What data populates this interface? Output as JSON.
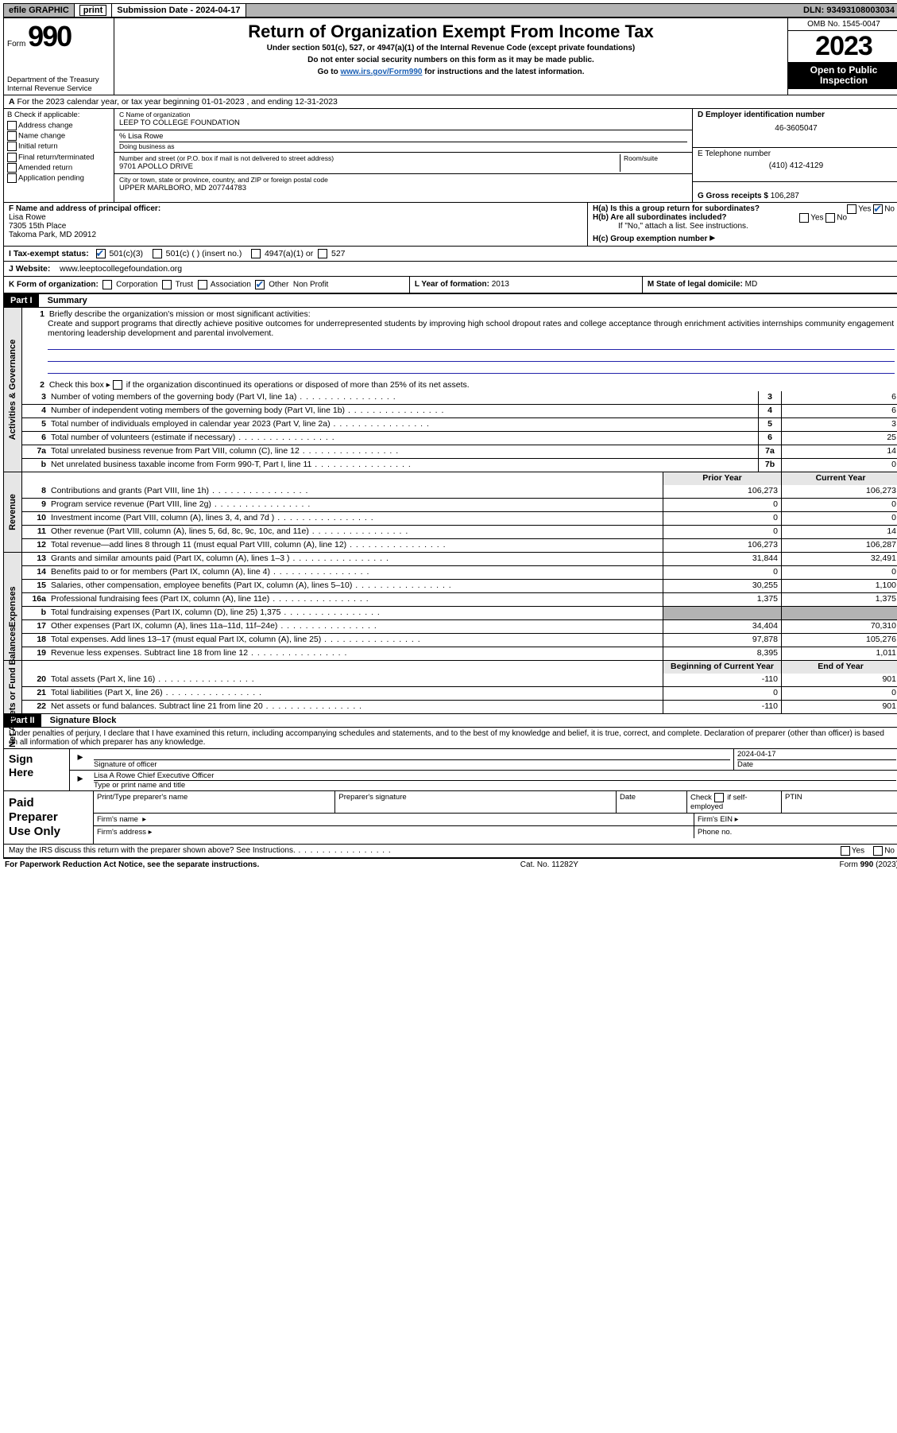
{
  "topbar": {
    "efile": "efile GRAPHIC",
    "print": "print",
    "submission_label": "Submission Date - 2024-04-17",
    "dln": "DLN: 93493108003034"
  },
  "header": {
    "form_prefix": "Form",
    "form_number": "990",
    "dept1": "Department of the Treasury",
    "dept2": "Internal Revenue Service",
    "title": "Return of Organization Exempt From Income Tax",
    "sub1": "Under section 501(c), 527, or 4947(a)(1) of the Internal Revenue Code (except private foundations)",
    "sub2": "Do not enter social security numbers on this form as it may be made public.",
    "sub3_pre": "Go to ",
    "sub3_link": "www.irs.gov/Form990",
    "sub3_post": " for instructions and the latest information.",
    "omb": "OMB No. 1545-0047",
    "year": "2023",
    "inspection1": "Open to Public",
    "inspection2": "Inspection"
  },
  "rowA": {
    "label_A": "A",
    "text": "For the 2023 calendar year, or tax year beginning 01-01-2023    , and ending 12-31-2023"
  },
  "colB": {
    "label": "B Check if applicable:",
    "items": [
      "Address change",
      "Name change",
      "Initial return",
      "Final return/terminated",
      "Amended return",
      "Application pending"
    ]
  },
  "colC": {
    "name_lbl": "C Name of organization",
    "name": "LEEP TO COLLEGE FOUNDATION",
    "care_of": "% Lisa Rowe",
    "dba_lbl": "Doing business as",
    "street_lbl": "Number and street (or P.O. box if mail is not delivered to street address)",
    "suite_lbl": "Room/suite",
    "street": "9701 APOLLO DRIVE",
    "city_lbl": "City or town, state or province, country, and ZIP or foreign postal code",
    "city": "UPPER MARLBORO, MD  207744783"
  },
  "colDEG": {
    "d_lbl": "D Employer identification number",
    "ein": "46-3605047",
    "e_lbl": "E Telephone number",
    "phone": "(410) 412-4129",
    "g_lbl": "G Gross receipts $",
    "gross": "106,287"
  },
  "rowF": {
    "lbl": "F Name and address of principal officer:",
    "name": "Lisa Rowe",
    "addr1": "7305 15th Place",
    "addr2": "Takoma Park, MD  20912"
  },
  "rowH": {
    "ha": "H(a)  Is this a group return for subordinates?",
    "hb": "H(b)  Are all subordinates included?",
    "hb_note": "If \"No,\" attach a list. See instructions.",
    "hc": "H(c)  Group exemption number ",
    "yes": "Yes",
    "no": "No"
  },
  "rowI": {
    "lbl": "I    Tax-exempt status:",
    "o1": "501(c)(3)",
    "o2": "501(c) (  ) (insert no.)",
    "o3": "4947(a)(1) or",
    "o4": "527"
  },
  "rowJ": {
    "lbl": "J    Website: ",
    "val": "www.leeptocollegefoundation.org"
  },
  "rowK": {
    "k_lbl": "K Form of organization:",
    "k_opts": [
      "Corporation",
      "Trust",
      "Association",
      "Other"
    ],
    "k_other": "Non Profit",
    "l_lbl": "L Year of formation:",
    "l_val": "2013",
    "m_lbl": "M State of legal domicile:",
    "m_val": "MD"
  },
  "part1": {
    "header": "Part I",
    "title": "Summary",
    "q1_lbl": "Briefly describe the organization's mission or most significant activities:",
    "q1_text": "Create and support programs that directly achieve positive outcomes for underrepresented students by improving high school dropout rates and college acceptance through enrichment activities internships community engagement mentoring leadership development and parental involvement.",
    "q2": "Check this box          if the organization discontinued its operations or disposed of more than 25% of its net assets.",
    "side_gov": "Activities & Governance",
    "side_rev": "Revenue",
    "side_exp": "Expenses",
    "side_net": "Net Assets or Fund Balances",
    "rows_gov": [
      {
        "n": "3",
        "t": "Number of voting members of the governing body (Part VI, line 1a)",
        "b": "3",
        "v": "6"
      },
      {
        "n": "4",
        "t": "Number of independent voting members of the governing body (Part VI, line 1b)",
        "b": "4",
        "v": "6"
      },
      {
        "n": "5",
        "t": "Total number of individuals employed in calendar year 2023 (Part V, line 2a)",
        "b": "5",
        "v": "3"
      },
      {
        "n": "6",
        "t": "Total number of volunteers (estimate if necessary)",
        "b": "6",
        "v": "25"
      },
      {
        "n": "7a",
        "t": "Total unrelated business revenue from Part VIII, column (C), line 12",
        "b": "7a",
        "v": "14"
      },
      {
        "n": "b",
        "t": "Net unrelated business taxable income from Form 990-T, Part I, line 11",
        "b": "7b",
        "v": "0"
      }
    ],
    "head_prior": "Prior Year",
    "head_current": "Current Year",
    "rows_rev": [
      {
        "n": "8",
        "t": "Contributions and grants (Part VIII, line 1h)",
        "p": "106,273",
        "c": "106,273"
      },
      {
        "n": "9",
        "t": "Program service revenue (Part VIII, line 2g)",
        "p": "0",
        "c": "0"
      },
      {
        "n": "10",
        "t": "Investment income (Part VIII, column (A), lines 3, 4, and 7d )",
        "p": "0",
        "c": "0"
      },
      {
        "n": "11",
        "t": "Other revenue (Part VIII, column (A), lines 5, 6d, 8c, 9c, 10c, and 11e)",
        "p": "0",
        "c": "14"
      },
      {
        "n": "12",
        "t": "Total revenue—add lines 8 through 11 (must equal Part VIII, column (A), line 12)",
        "p": "106,273",
        "c": "106,287"
      }
    ],
    "rows_exp": [
      {
        "n": "13",
        "t": "Grants and similar amounts paid (Part IX, column (A), lines 1–3 )",
        "p": "31,844",
        "c": "32,491"
      },
      {
        "n": "14",
        "t": "Benefits paid to or for members (Part IX, column (A), line 4)",
        "p": "0",
        "c": "0"
      },
      {
        "n": "15",
        "t": "Salaries, other compensation, employee benefits (Part IX, column (A), lines 5–10)",
        "p": "30,255",
        "c": "1,100"
      },
      {
        "n": "16a",
        "t": "Professional fundraising fees (Part IX, column (A), line 11e)",
        "p": "1,375",
        "c": "1,375"
      },
      {
        "n": "b",
        "t": "Total fundraising expenses (Part IX, column (D), line 25) 1,375",
        "p": "",
        "c": "",
        "shade": true
      },
      {
        "n": "17",
        "t": "Other expenses (Part IX, column (A), lines 11a–11d, 11f–24e)",
        "p": "34,404",
        "c": "70,310"
      },
      {
        "n": "18",
        "t": "Total expenses. Add lines 13–17 (must equal Part IX, column (A), line 25)",
        "p": "97,878",
        "c": "105,276"
      },
      {
        "n": "19",
        "t": "Revenue less expenses. Subtract line 18 from line 12",
        "p": "8,395",
        "c": "1,011"
      }
    ],
    "head_begin": "Beginning of Current Year",
    "head_end": "End of Year",
    "rows_net": [
      {
        "n": "20",
        "t": "Total assets (Part X, line 16)",
        "p": "-110",
        "c": "901"
      },
      {
        "n": "21",
        "t": "Total liabilities (Part X, line 26)",
        "p": "0",
        "c": "0"
      },
      {
        "n": "22",
        "t": "Net assets or fund balances. Subtract line 21 from line 20",
        "p": "-110",
        "c": "901"
      }
    ]
  },
  "part2": {
    "header": "Part II",
    "title": "Signature Block",
    "perjury": "Under penalties of perjury, I declare that I have examined this return, including accompanying schedules and statements, and to the best of my knowledge and belief, it is true, correct, and complete. Declaration of preparer (other than officer) is based on all information of which preparer has any knowledge."
  },
  "sign": {
    "left": "Sign Here",
    "sig_lbl": "Signature of officer",
    "date_lbl": "Date",
    "date_val": "2024-04-17",
    "name": "Lisa A Rowe  Chief Executive Officer",
    "name_lbl": "Type or print name and title"
  },
  "paid": {
    "left": "Paid Preparer Use Only",
    "h1": "Print/Type preparer's name",
    "h2": "Preparer's signature",
    "h3": "Date",
    "h4_pre": "Check",
    "h4_post": "if self-employed",
    "h5": "PTIN",
    "r2a": "Firm's name",
    "r2b": "Firm's EIN",
    "r3a": "Firm's address",
    "r3b": "Phone no."
  },
  "discuss": {
    "text": "May the IRS discuss this return with the preparer shown above? See Instructions.",
    "yes": "Yes",
    "no": "No"
  },
  "footer": {
    "left": "For Paperwork Reduction Act Notice, see the separate instructions.",
    "center": "Cat. No. 11282Y",
    "right_pre": "Form ",
    "right_form": "990",
    "right_post": " (2023)"
  }
}
